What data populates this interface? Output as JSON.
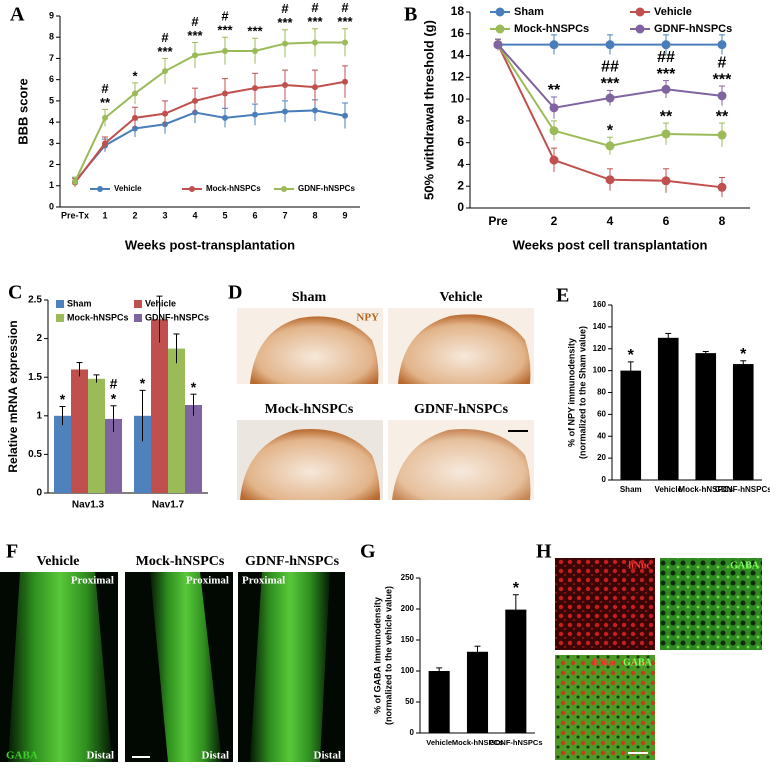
{
  "chart_data": [
    {
      "panel": "A",
      "type": "line",
      "ylabel": [
        "BBB score"
      ],
      "xlabel": "Weeks post-transplantation",
      "categories": [
        "Pre-Tx",
        "1",
        "2",
        "3",
        "4",
        "5",
        "6",
        "7",
        "8",
        "9"
      ],
      "ylim": [
        0,
        9
      ],
      "yticks": [
        0,
        1,
        2,
        3,
        4,
        5,
        6,
        7,
        8,
        9
      ],
      "grid": false,
      "legend": "bottom",
      "series": [
        {
          "name": "Vehicle",
          "color": "#4a7ebb",
          "values": [
            1.2,
            2.9,
            3.7,
            3.9,
            4.45,
            4.2,
            4.35,
            4.5,
            4.55,
            4.3
          ],
          "errors": [
            0.2,
            0.3,
            0.4,
            0.45,
            0.5,
            0.45,
            0.5,
            0.5,
            0.5,
            0.6
          ]
        },
        {
          "name": "Mock-hNSPCs",
          "color": "#c0504d",
          "values": [
            1.15,
            3.0,
            4.2,
            4.4,
            5.0,
            5.35,
            5.6,
            5.75,
            5.65,
            5.9
          ],
          "errors": [
            0.2,
            0.3,
            0.5,
            0.6,
            0.6,
            0.7,
            0.7,
            0.7,
            0.8,
            0.75
          ]
        },
        {
          "name": "GDNF-hNSPCs",
          "color": "#9bbb59",
          "values": [
            1.2,
            4.2,
            5.35,
            6.4,
            7.15,
            7.35,
            7.35,
            7.7,
            7.75,
            7.75
          ],
          "errors": [
            0.2,
            0.4,
            0.5,
            0.6,
            0.6,
            0.65,
            0.6,
            0.65,
            0.65,
            0.65
          ],
          "significance": [
            null,
            [
              "#",
              "**"
            ],
            [
              "*"
            ],
            [
              "#",
              "***"
            ],
            [
              "#",
              "***"
            ],
            [
              "#",
              "***"
            ],
            [
              "***"
            ],
            [
              "#",
              "***"
            ],
            [
              "#",
              "***"
            ],
            [
              "#",
              "***"
            ]
          ]
        }
      ]
    },
    {
      "panel": "B",
      "type": "line",
      "ylabel": [
        "50% withdrawal threshold (g)"
      ],
      "xlabel": "Weeks post cell transplantation",
      "categories": [
        "Pre",
        "2",
        "4",
        "6",
        "8"
      ],
      "ylim": [
        0,
        18
      ],
      "yticks": [
        0,
        2,
        4,
        6,
        8,
        10,
        12,
        14,
        16,
        18
      ],
      "grid": false,
      "legend": "top",
      "series": [
        {
          "name": "Sham",
          "color": "#4a7ebb",
          "values": [
            15,
            15,
            15,
            15,
            15
          ],
          "errors": [
            0.5,
            0.9,
            0.9,
            0.9,
            0.9
          ]
        },
        {
          "name": "Vehicle",
          "color": "#c0504d",
          "values": [
            15,
            4.4,
            2.6,
            2.5,
            1.9
          ],
          "errors": [
            0.5,
            1.1,
            1.0,
            1.1,
            0.9
          ]
        },
        {
          "name": "Mock-hNSPCs",
          "color": "#9bbb59",
          "values": [
            15,
            7.1,
            5.7,
            6.8,
            6.7
          ],
          "errors": [
            0.5,
            0.9,
            0.8,
            1.0,
            1.1
          ],
          "significance": [
            null,
            null,
            [
              "*"
            ],
            [
              "**"
            ],
            [
              "**"
            ]
          ]
        },
        {
          "name": "GDNF-hNSPCs",
          "color": "#8064a2",
          "values": [
            15,
            9.2,
            10.1,
            10.9,
            10.3
          ],
          "errors": [
            0.5,
            1.0,
            0.7,
            0.8,
            0.9
          ],
          "significance": [
            null,
            [
              "**"
            ],
            [
              "##",
              "***"
            ],
            [
              "##",
              "***"
            ],
            [
              "#",
              "***"
            ]
          ]
        }
      ]
    },
    {
      "panel": "C",
      "type": "bar",
      "ylabel": [
        "Relative mRNA expression"
      ],
      "categories": [
        "Nav1.3",
        "Nav1.7"
      ],
      "ylim": [
        0,
        2.5
      ],
      "yticks": [
        0,
        0.5,
        1,
        1.5,
        2,
        2.5
      ],
      "grid": false,
      "legend": "top",
      "series": [
        {
          "name": "Sham",
          "color": "#4f81bd",
          "values": [
            1,
            1
          ],
          "errors": [
            0.12,
            0.33
          ],
          "significance": [
            [
              "*"
            ],
            [
              "*"
            ]
          ]
        },
        {
          "name": "Vehicle",
          "color": "#c0504d",
          "values": [
            1.6,
            2.25
          ],
          "errors": [
            0.09,
            0.3
          ]
        },
        {
          "name": "Mock-hNSPCs",
          "color": "#9bbb59",
          "values": [
            1.48,
            1.87
          ],
          "errors": [
            0.05,
            0.19
          ]
        },
        {
          "name": "GDNF-hNSPCs",
          "color": "#8064a2",
          "values": [
            0.96,
            1.14
          ],
          "errors": [
            0.17,
            0.14
          ],
          "significance": [
            [
              "#",
              "*"
            ],
            [
              "*"
            ]
          ]
        }
      ]
    },
    {
      "panel": "E",
      "type": "bar",
      "ylabel": [
        "% of NPY immunodensity",
        "(normalized to the Sham value)"
      ],
      "categories": [
        "Sham",
        "Vehicle",
        "Mock-hNSPCs",
        "GDNF-hNSPCs"
      ],
      "values": [
        100,
        130,
        116,
        106
      ],
      "errors": [
        8,
        4,
        1.5,
        3
      ],
      "color": "#000000",
      "significance": [
        [
          "*"
        ],
        null,
        null,
        [
          "*"
        ]
      ],
      "ylim": [
        0,
        160
      ],
      "yticks": [
        0,
        20,
        40,
        60,
        80,
        100,
        120,
        140,
        160
      ],
      "grid": false
    },
    {
      "panel": "G",
      "type": "bar",
      "ylabel": [
        "% of GABA Immunodensity",
        "(normalized to the vehicle value)"
      ],
      "categories": [
        "Vehicle",
        "Mock-hNSPCs",
        "GDNF-hNSPCs"
      ],
      "values": [
        100,
        131,
        199
      ],
      "errors": [
        5,
        9,
        24
      ],
      "color": "#000000",
      "significance": [
        null,
        null,
        [
          "*"
        ]
      ],
      "ylim": [
        0,
        250
      ],
      "yticks": [
        0,
        50,
        100,
        150,
        200,
        250
      ],
      "grid": false
    }
  ],
  "image_panels": [
    {
      "panel": "D",
      "titles": [
        "Sham",
        "Vehicle",
        "Mock-hNSPCs",
        "GDNF-hNSPCs"
      ],
      "stain": "NPY"
    },
    {
      "panel": "F",
      "titles": [
        "Vehicle",
        "Mock-hNSPCs",
        "GDNF-hNSPCs"
      ],
      "top_labels": [
        "Proximal",
        "Proximal",
        "Proximal"
      ],
      "bottom_labels": [
        "Distal",
        "Distal",
        "Distal"
      ],
      "stain": "GABA"
    },
    {
      "panel": "H",
      "labels": [
        "hNuc",
        "GABA"
      ],
      "merge_labels": [
        "hNuc",
        "GABA"
      ]
    }
  ]
}
